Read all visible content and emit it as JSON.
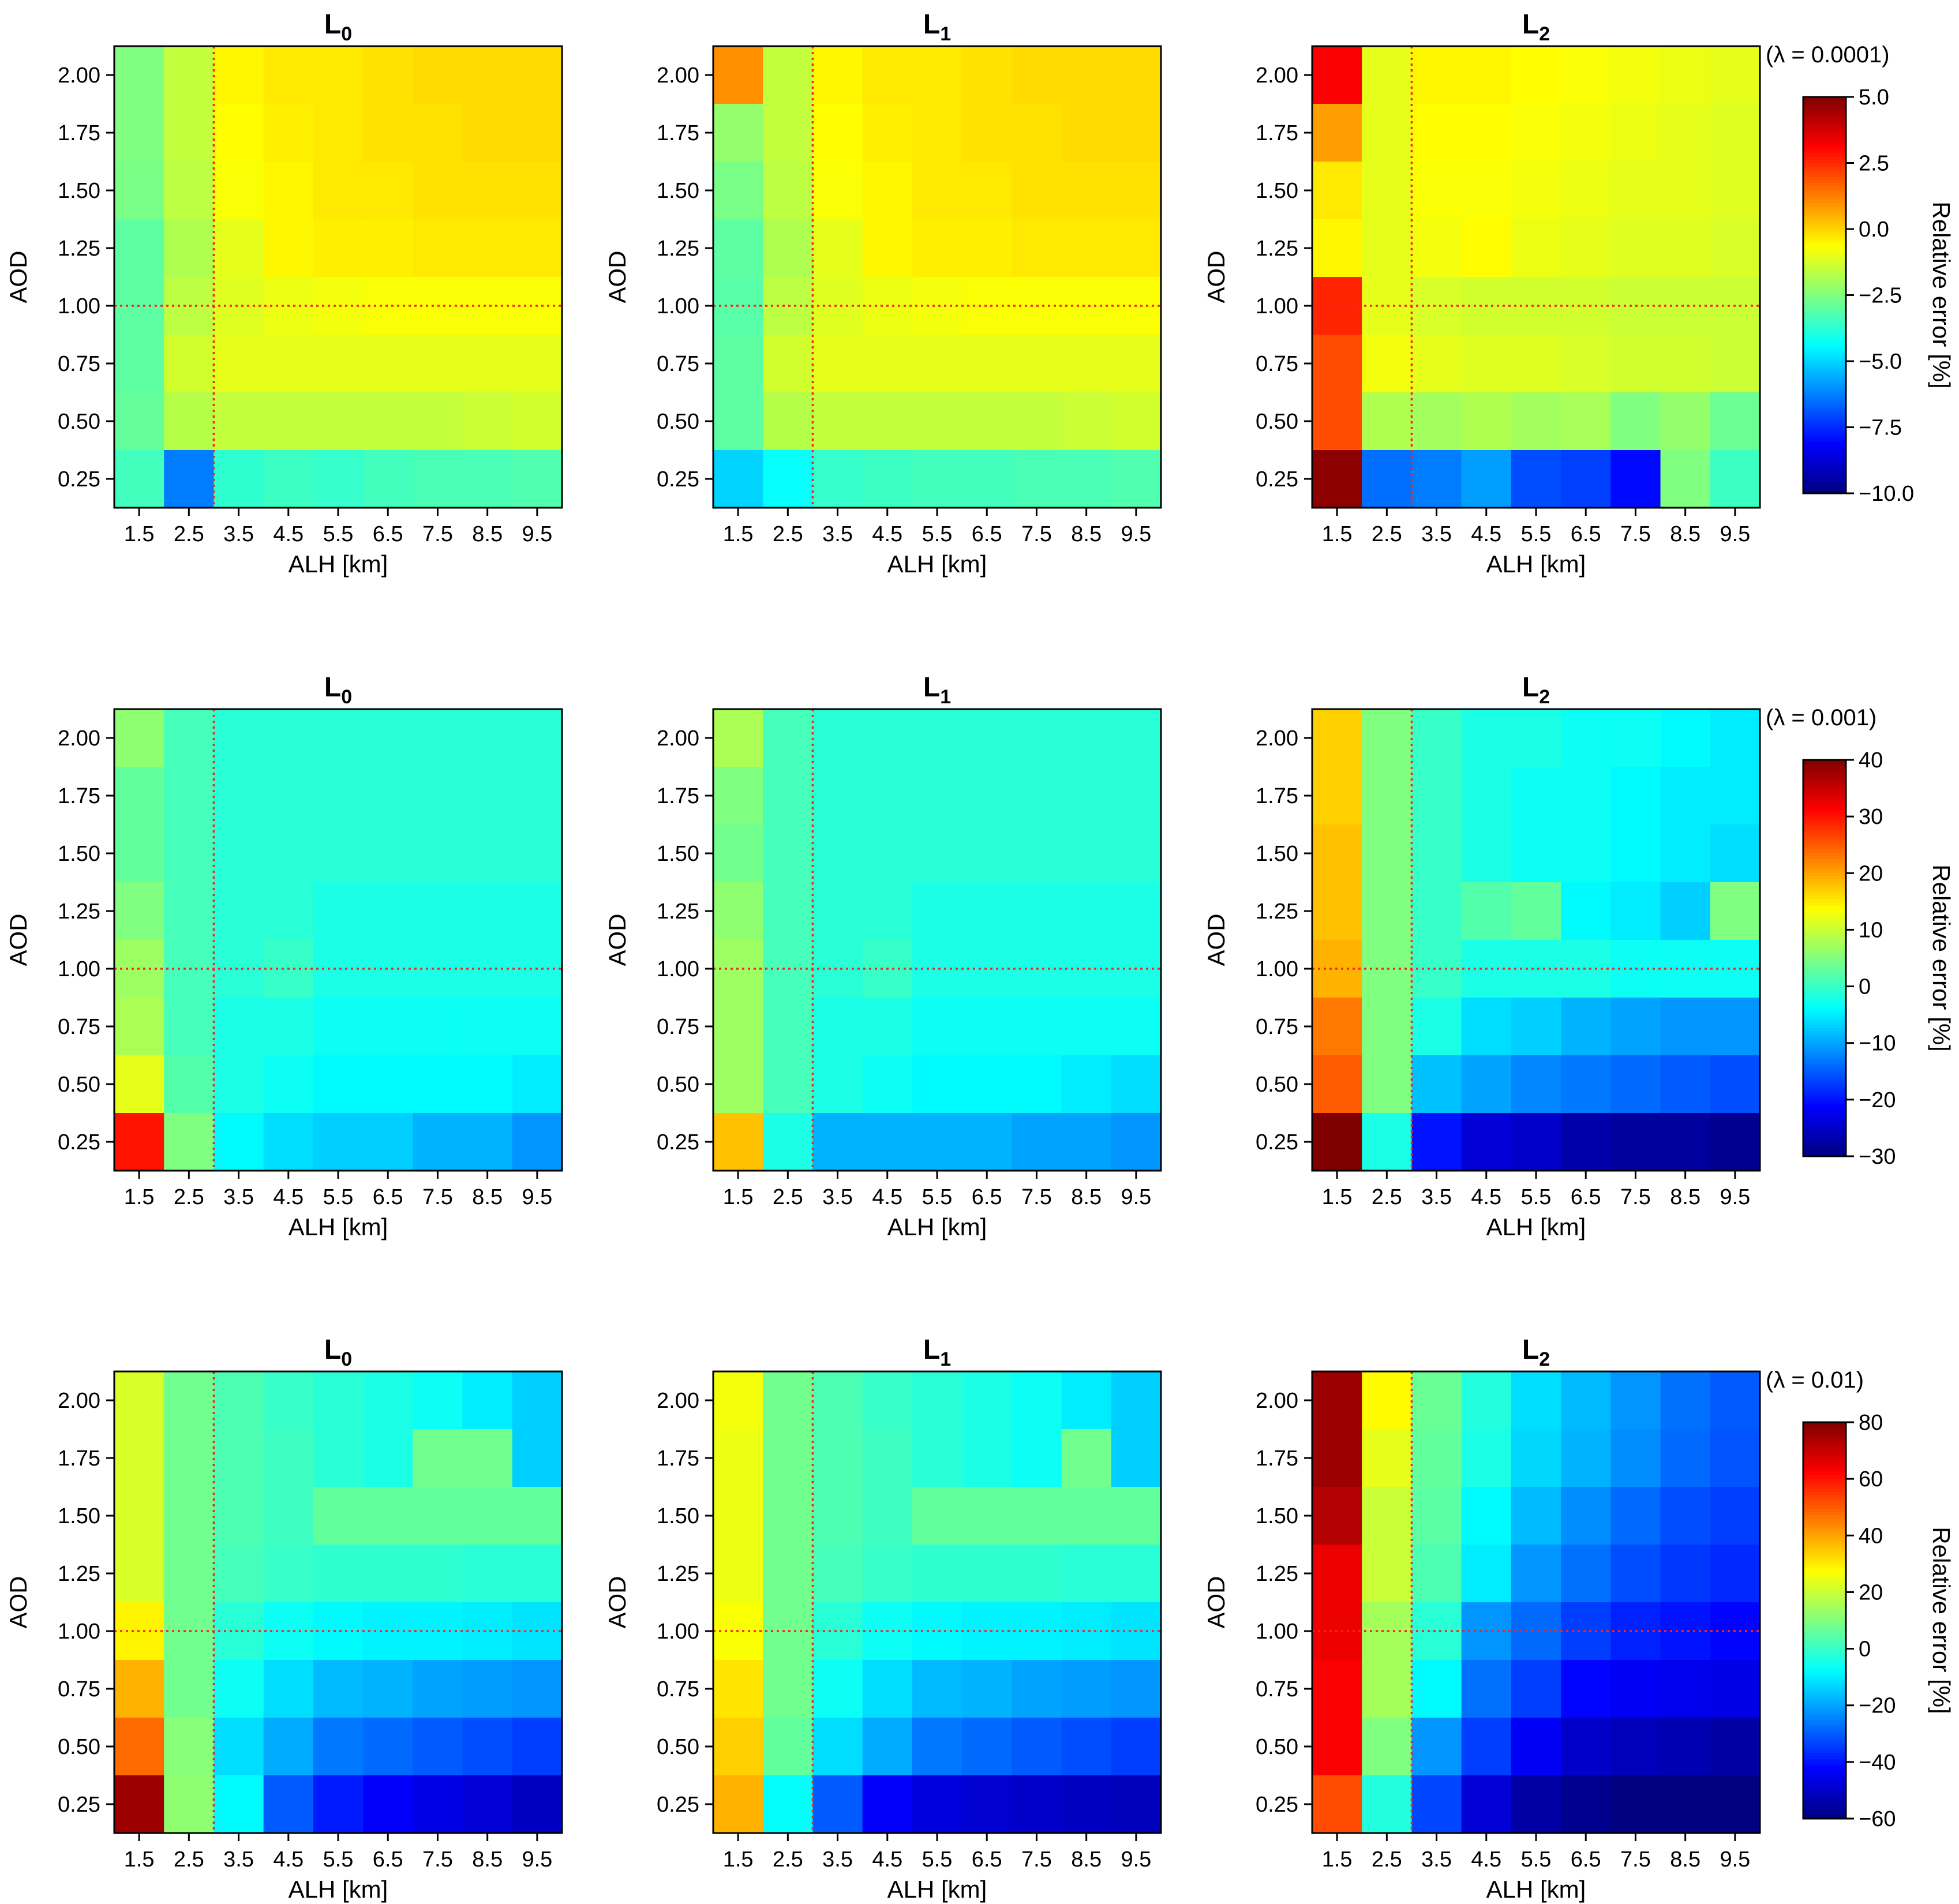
{
  "figure": {
    "ylabel": "AOD",
    "xlabel": "ALH [km]",
    "x_ticks": [
      "1.5",
      "2.5",
      "3.5",
      "4.5",
      "5.5",
      "6.5",
      "7.5",
      "8.5",
      "9.5"
    ],
    "y_ticks": [
      "2.00",
      "1.75",
      "1.50",
      "1.25",
      "1.00",
      "0.75",
      "0.50",
      "0.25"
    ],
    "colorbar_label": "Relative error [%]",
    "colormap": "jet",
    "reference_line_color": "#ff2020",
    "reference_alh_km": 3.0,
    "reference_aod": 1.0
  },
  "rows": [
    {
      "lambda_label": "(λ = 0.0001)",
      "colorbar": {
        "min": -10,
        "max": 5,
        "ticks": [
          "5.0",
          "2.5",
          "0.0",
          "−2.5",
          "−5.0",
          "−7.5",
          "−10.0"
        ],
        "tick_values": [
          5,
          2.5,
          0,
          -2.5,
          -5,
          -7.5,
          -10
        ]
      }
    },
    {
      "lambda_label": "(λ = 0.001)",
      "colorbar": {
        "min": -30,
        "max": 40,
        "ticks": [
          "40",
          "30",
          "20",
          "10",
          "0",
          "−10",
          "−20",
          "−30"
        ],
        "tick_values": [
          40,
          30,
          20,
          10,
          0,
          -10,
          -20,
          -30
        ]
      }
    },
    {
      "lambda_label": "(λ = 0.01)",
      "colorbar": {
        "min": -60,
        "max": 80,
        "ticks": [
          "80",
          "60",
          "40",
          "20",
          "0",
          "−20",
          "−40",
          "−60"
        ],
        "tick_values": [
          80,
          60,
          40,
          20,
          0,
          -20,
          -40,
          -60
        ]
      }
    }
  ],
  "panel_titles": [
    {
      "base": "L",
      "sub": "0"
    },
    {
      "base": "L",
      "sub": "1"
    },
    {
      "base": "L",
      "sub": "2"
    }
  ],
  "chart_data": [
    {
      "type": "heatmap",
      "title": "L0",
      "lambda": 0.0001,
      "xlabel": "ALH [km]",
      "ylabel": "AOD",
      "x": [
        1.5,
        2.5,
        3.5,
        4.5,
        5.5,
        6.5,
        7.5,
        8.5,
        9.5
      ],
      "y": [
        2.0,
        1.75,
        1.5,
        1.25,
        1.0,
        0.75,
        0.5,
        0.25
      ],
      "vmin": -10,
      "vmax": 5,
      "values": [
        [
          -2.5,
          -1.5,
          -0.5,
          -0.3,
          -0.3,
          -0.2,
          -0.1,
          -0.1,
          -0.1
        ],
        [
          -2.5,
          -1.5,
          -0.6,
          -0.4,
          -0.3,
          -0.2,
          -0.2,
          -0.1,
          -0.1
        ],
        [
          -2.6,
          -1.6,
          -0.7,
          -0.5,
          -0.3,
          -0.3,
          -0.2,
          -0.2,
          -0.2
        ],
        [
          -3.0,
          -1.8,
          -1.0,
          -0.5,
          -0.4,
          -0.4,
          -0.3,
          -0.3,
          -0.3
        ],
        [
          -3.0,
          -1.6,
          -1.1,
          -0.9,
          -0.8,
          -0.7,
          -0.7,
          -0.7,
          -0.7
        ],
        [
          -3.0,
          -1.3,
          -1.0,
          -1.0,
          -1.0,
          -1.0,
          -1.0,
          -1.0,
          -1.0
        ],
        [
          -2.9,
          -1.7,
          -1.5,
          -1.5,
          -1.5,
          -1.5,
          -1.5,
          -1.4,
          -1.3
        ],
        [
          -3.4,
          -6.3,
          -3.7,
          -3.5,
          -3.6,
          -3.4,
          -3.3,
          -3.3,
          -3.2
        ]
      ]
    },
    {
      "type": "heatmap",
      "title": "L1",
      "lambda": 0.0001,
      "xlabel": "ALH [km]",
      "ylabel": "AOD",
      "x": [
        1.5,
        2.5,
        3.5,
        4.5,
        5.5,
        6.5,
        7.5,
        8.5,
        9.5
      ],
      "y": [
        2.0,
        1.75,
        1.5,
        1.25,
        1.0,
        0.75,
        0.5,
        0.25
      ],
      "vmin": -10,
      "vmax": 5,
      "values": [
        [
          1.0,
          -1.5,
          -0.5,
          -0.3,
          -0.3,
          -0.2,
          -0.1,
          -0.1,
          -0.1
        ],
        [
          -2.2,
          -1.5,
          -0.6,
          -0.4,
          -0.3,
          -0.2,
          -0.2,
          -0.1,
          -0.1
        ],
        [
          -2.6,
          -1.6,
          -0.7,
          -0.5,
          -0.3,
          -0.3,
          -0.2,
          -0.2,
          -0.2
        ],
        [
          -3.0,
          -1.8,
          -1.0,
          -0.5,
          -0.4,
          -0.4,
          -0.3,
          -0.3,
          -0.3
        ],
        [
          -3.1,
          -1.6,
          -1.1,
          -0.9,
          -0.8,
          -0.7,
          -0.7,
          -0.7,
          -0.7
        ],
        [
          -3.0,
          -1.3,
          -1.0,
          -1.0,
          -1.0,
          -1.0,
          -1.0,
          -1.0,
          -1.0
        ],
        [
          -3.0,
          -1.7,
          -1.5,
          -1.5,
          -1.5,
          -1.5,
          -1.5,
          -1.4,
          -1.3
        ],
        [
          -5.0,
          -4.3,
          -3.6,
          -3.5,
          -3.4,
          -3.4,
          -3.3,
          -3.3,
          -3.2
        ]
      ]
    },
    {
      "type": "heatmap",
      "title": "L2",
      "lambda": 0.0001,
      "xlabel": "ALH [km]",
      "ylabel": "AOD",
      "x": [
        1.5,
        2.5,
        3.5,
        4.5,
        5.5,
        6.5,
        7.5,
        8.5,
        9.5
      ],
      "y": [
        2.0,
        1.75,
        1.5,
        1.25,
        1.0,
        0.75,
        0.5,
        0.25
      ],
      "vmin": -10,
      "vmax": 5,
      "values": [
        [
          3.2,
          -1.0,
          -0.5,
          -0.5,
          -0.6,
          -0.7,
          -0.8,
          -0.9,
          -1.0
        ],
        [
          0.8,
          -1.0,
          -0.6,
          -0.6,
          -0.7,
          -0.8,
          -0.9,
          -1.0,
          -1.1
        ],
        [
          -0.3,
          -1.0,
          -0.7,
          -0.7,
          -0.8,
          -0.9,
          -1.0,
          -1.0,
          -1.1
        ],
        [
          -0.5,
          -1.0,
          -0.8,
          -0.6,
          -0.9,
          -1.0,
          -1.1,
          -1.1,
          -1.2
        ],
        [
          2.6,
          -1.0,
          -1.2,
          -1.3,
          -1.3,
          -1.3,
          -1.4,
          -1.4,
          -1.4
        ],
        [
          2.0,
          -0.8,
          -1.0,
          -1.1,
          -1.1,
          -1.2,
          -1.3,
          -1.3,
          -1.4
        ],
        [
          2.0,
          -1.8,
          -2.0,
          -1.8,
          -2.0,
          -1.9,
          -2.5,
          -2.2,
          -2.8
        ],
        [
          4.8,
          -6.5,
          -6.3,
          -5.8,
          -7.0,
          -7.2,
          -8.0,
          -2.5,
          -3.5
        ]
      ]
    },
    {
      "type": "heatmap",
      "title": "L0",
      "lambda": 0.001,
      "xlabel": "ALH [km]",
      "ylabel": "AOD",
      "x": [
        1.5,
        2.5,
        3.5,
        4.5,
        5.5,
        6.5,
        7.5,
        8.5,
        9.5
      ],
      "y": [
        2.0,
        1.75,
        1.5,
        1.25,
        1.0,
        0.75,
        0.5,
        0.25
      ],
      "vmin": -30,
      "vmax": 40,
      "values": [
        [
          6,
          1,
          -1,
          -1,
          -1,
          -1,
          -1,
          -1,
          -1
        ],
        [
          3,
          1,
          -1,
          -1,
          -1,
          -1,
          -1,
          -1,
          -1
        ],
        [
          3,
          1,
          -1,
          -1,
          -1,
          -1,
          -1,
          -1,
          -1
        ],
        [
          5,
          1,
          -1,
          -1,
          -2,
          -2,
          -2,
          -2,
          -2
        ],
        [
          7,
          1,
          -1,
          0,
          -2,
          -2,
          -2,
          -2,
          -2
        ],
        [
          8,
          1,
          -2,
          -2,
          -3,
          -3,
          -3,
          -3,
          -3
        ],
        [
          12,
          2,
          -2,
          -3,
          -4,
          -4,
          -4,
          -4,
          -5
        ],
        [
          30,
          5,
          -4,
          -6,
          -7,
          -7,
          -9,
          -9,
          -11
        ]
      ]
    },
    {
      "type": "heatmap",
      "title": "L1",
      "lambda": 0.001,
      "xlabel": "ALH [km]",
      "ylabel": "AOD",
      "x": [
        1.5,
        2.5,
        3.5,
        4.5,
        5.5,
        6.5,
        7.5,
        8.5,
        9.5
      ],
      "y": [
        2.0,
        1.75,
        1.5,
        1.25,
        1.0,
        0.75,
        0.5,
        0.25
      ],
      "vmin": -30,
      "vmax": 40,
      "values": [
        [
          8,
          1,
          -1,
          -1,
          -1,
          -1,
          -1,
          -1,
          -1
        ],
        [
          5,
          1,
          -1,
          -1,
          -1,
          -1,
          -1,
          -1,
          -1
        ],
        [
          4,
          1,
          -1,
          -1,
          -1,
          -1,
          -1,
          -1,
          -1
        ],
        [
          6,
          1,
          -1,
          -1,
          -2,
          -2,
          -2,
          -2,
          -2
        ],
        [
          7,
          1,
          -1,
          0,
          -2,
          -2,
          -2,
          -2,
          -2
        ],
        [
          7,
          1,
          -2,
          -2,
          -3,
          -3,
          -3,
          -3,
          -3
        ],
        [
          7,
          1,
          -2,
          -3,
          -4,
          -4,
          -4,
          -5,
          -6
        ],
        [
          18,
          -2,
          -9,
          -9,
          -9,
          -9,
          -10,
          -10,
          -11
        ]
      ]
    },
    {
      "type": "heatmap",
      "title": "L2",
      "lambda": 0.001,
      "xlabel": "ALH [km]",
      "ylabel": "AOD",
      "x": [
        1.5,
        2.5,
        3.5,
        4.5,
        5.5,
        6.5,
        7.5,
        8.5,
        9.5
      ],
      "y": [
        2.0,
        1.75,
        1.5,
        1.25,
        1.0,
        0.75,
        0.5,
        0.25
      ],
      "vmin": -30,
      "vmax": 40,
      "values": [
        [
          17,
          5,
          0,
          -2,
          -2,
          -3,
          -3,
          -4,
          -5
        ],
        [
          17,
          5,
          0,
          -2,
          -3,
          -3,
          -4,
          -5,
          -5
        ],
        [
          18,
          5,
          0,
          -2,
          -3,
          -3,
          -4,
          -5,
          -6
        ],
        [
          18,
          5,
          0,
          2,
          3,
          -4,
          -5,
          -7,
          5
        ],
        [
          19,
          5,
          0,
          -2,
          -2,
          -2,
          -3,
          -3,
          -3
        ],
        [
          23,
          5,
          -2,
          -6,
          -7,
          -9,
          -10,
          -11,
          -11
        ],
        [
          25,
          5,
          -8,
          -10,
          -12,
          -13,
          -14,
          -15,
          -16
        ],
        [
          40,
          -2,
          -20,
          -24,
          -25,
          -27,
          -28,
          -28,
          -29
        ]
      ]
    },
    {
      "type": "heatmap",
      "title": "L0",
      "lambda": 0.01,
      "xlabel": "ALH [km]",
      "ylabel": "AOD",
      "x": [
        1.5,
        2.5,
        3.5,
        4.5,
        5.5,
        6.5,
        7.5,
        8.5,
        9.5
      ],
      "y": [
        2.0,
        1.75,
        1.5,
        1.25,
        1.0,
        0.75,
        0.5,
        0.25
      ],
      "vmin": -60,
      "vmax": 80,
      "values": [
        [
          22,
          8,
          3,
          0,
          -2,
          -4,
          -6,
          -10,
          -14
        ],
        [
          22,
          8,
          3,
          1,
          -2,
          -4,
          8,
          8,
          -14
        ],
        [
          22,
          8,
          3,
          1,
          6,
          6,
          6,
          6,
          6
        ],
        [
          22,
          8,
          2,
          0,
          -1,
          -1,
          -1,
          -2,
          -2
        ],
        [
          29,
          8,
          -2,
          -6,
          -8,
          -9,
          -9,
          -10,
          -11
        ],
        [
          38,
          8,
          -6,
          -12,
          -17,
          -18,
          -20,
          -21,
          -22
        ],
        [
          48,
          11,
          -12,
          -19,
          -26,
          -28,
          -30,
          -32,
          -34
        ],
        [
          76,
          12,
          -8,
          -30,
          -39,
          -43,
          -46,
          -48,
          -51
        ]
      ]
    },
    {
      "type": "heatmap",
      "title": "L1",
      "lambda": 0.01,
      "xlabel": "ALH [km]",
      "ylabel": "AOD",
      "x": [
        1.5,
        2.5,
        3.5,
        4.5,
        5.5,
        6.5,
        7.5,
        8.5,
        9.5
      ],
      "y": [
        2.0,
        1.75,
        1.5,
        1.25,
        1.0,
        0.75,
        0.5,
        0.25
      ],
      "vmin": -60,
      "vmax": 80,
      "values": [
        [
          26,
          8,
          3,
          0,
          -2,
          -4,
          -6,
          -10,
          -14
        ],
        [
          25,
          8,
          3,
          1,
          -2,
          -4,
          -6,
          8,
          -14
        ],
        [
          25,
          8,
          3,
          1,
          6,
          6,
          6,
          6,
          6
        ],
        [
          25,
          8,
          2,
          0,
          -1,
          -1,
          -1,
          -2,
          -2
        ],
        [
          27,
          8,
          -2,
          -6,
          -8,
          -9,
          -9,
          -10,
          -11
        ],
        [
          31,
          8,
          -6,
          -12,
          -17,
          -18,
          -20,
          -21,
          -22
        ],
        [
          34,
          6,
          -12,
          -19,
          -26,
          -28,
          -30,
          -32,
          -34
        ],
        [
          38,
          -7,
          -30,
          -43,
          -47,
          -49,
          -50,
          -51,
          -52
        ]
      ]
    },
    {
      "type": "heatmap",
      "title": "L2",
      "lambda": 0.01,
      "xlabel": "ALH [km]",
      "ylabel": "AOD",
      "x": [
        1.5,
        2.5,
        3.5,
        4.5,
        5.5,
        6.5,
        7.5,
        8.5,
        9.5
      ],
      "y": [
        2.0,
        1.75,
        1.5,
        1.25,
        1.0,
        0.75,
        0.5,
        0.25
      ],
      "vmin": -60,
      "vmax": 80,
      "values": [
        [
          76,
          28,
          7,
          -3,
          -12,
          -17,
          -22,
          -27,
          -30
        ],
        [
          76,
          24,
          6,
          -4,
          -13,
          -18,
          -23,
          -28,
          -31
        ],
        [
          73,
          20,
          5,
          -8,
          -17,
          -23,
          -28,
          -32,
          -34
        ],
        [
          65,
          20,
          3,
          -10,
          -22,
          -27,
          -32,
          -35,
          -37
        ],
        [
          65,
          15,
          -2,
          -22,
          -28,
          -34,
          -38,
          -40,
          -42
        ],
        [
          63,
          15,
          -8,
          -27,
          -34,
          -42,
          -44,
          -45,
          -46
        ],
        [
          63,
          10,
          -22,
          -34,
          -44,
          -50,
          -52,
          -53,
          -55
        ],
        [
          52,
          -3,
          -33,
          -48,
          -55,
          -58,
          -60,
          -60,
          -60
        ]
      ]
    }
  ]
}
